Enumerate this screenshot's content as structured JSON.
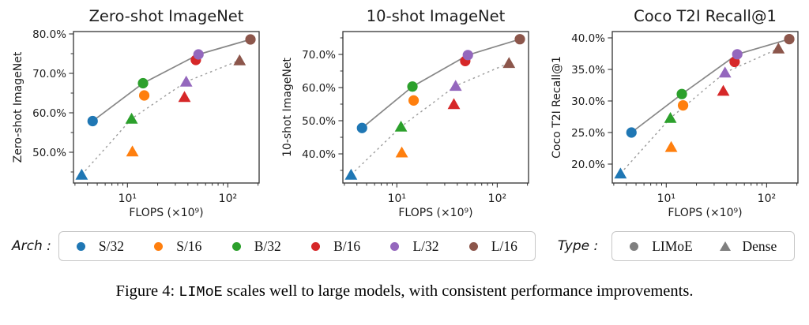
{
  "colors": {
    "type_marker": "#7f7f7f",
    "solid_line": "#878787",
    "dashed_line": "#9b9b9b",
    "axis": "#333333"
  },
  "archs": [
    {
      "label": "S/32",
      "color": "#1f77b4"
    },
    {
      "label": "S/16",
      "color": "#ff7f0e"
    },
    {
      "label": "B/32",
      "color": "#2ca02c"
    },
    {
      "label": "B/16",
      "color": "#d62728"
    },
    {
      "label": "L/32",
      "color": "#9467bd"
    },
    {
      "label": "L/16",
      "color": "#8c564b"
    }
  ],
  "types": [
    {
      "label": "LIMoE",
      "marker": "circle"
    },
    {
      "label": "Dense",
      "marker": "triangle"
    }
  ],
  "legend": {
    "arch_label": "Arch :",
    "type_label": "Type :"
  },
  "caption": {
    "prefix": "Figure 4: ",
    "code": "LIMoE",
    "suffix": " scales well to large models, with consistent performance improvements."
  },
  "chart_data": [
    {
      "type": "scatter",
      "title": "Zero-shot ImageNet",
      "xlabel": "FLOPS (×10⁹)",
      "ylabel": "Zero-shot ImageNet",
      "xscale": "log",
      "xlim": [
        2.9,
        205
      ],
      "ylim": [
        42.2,
        80.6
      ],
      "yticks": [
        50,
        60,
        70,
        80
      ],
      "ytick_labels": [
        "50.0%",
        "60.0%",
        "70.0%",
        "80.0%"
      ],
      "y_minor_step": 5,
      "xticks": [
        10,
        100
      ],
      "xtick_labels": [
        "10¹",
        "10²"
      ],
      "x_minor": [
        3,
        4,
        5,
        6,
        7,
        8,
        9,
        20,
        30,
        40,
        50,
        60,
        70,
        80,
        90,
        200
      ],
      "grid": false,
      "series": [
        {
          "name": "Dense",
          "marker": "triangle",
          "line": "dashed",
          "line_point_indices": [
            0,
            2,
            4,
            5
          ],
          "x": [
            3.5,
            11.2,
            11.0,
            37,
            38.5,
            131
          ],
          "y": [
            44.3,
            50.2,
            58.5,
            64.0,
            67.9,
            73.3
          ]
        },
        {
          "name": "LIMoE",
          "marker": "circle",
          "line": "solid",
          "line_point_indices": [
            0,
            2,
            4,
            5
          ],
          "x": [
            4.5,
            14.7,
            14.3,
            48,
            51,
            168
          ],
          "y": [
            57.9,
            64.4,
            67.5,
            73.4,
            74.8,
            78.6
          ]
        }
      ]
    },
    {
      "type": "scatter",
      "title": "10-shot ImageNet",
      "xlabel": "FLOPS (×10⁹)",
      "ylabel": "10-shot ImageNet",
      "xscale": "log",
      "xlim": [
        2.9,
        205
      ],
      "ylim": [
        31.2,
        76.9
      ],
      "yticks": [
        40,
        50,
        60,
        70
      ],
      "ytick_labels": [
        "40.0%",
        "50.0%",
        "60.0%",
        "70.0%"
      ],
      "y_minor_step": 5,
      "xticks": [
        10,
        100
      ],
      "xtick_labels": [
        "10¹",
        "10²"
      ],
      "x_minor": [
        3,
        4,
        5,
        6,
        7,
        8,
        9,
        20,
        30,
        40,
        50,
        60,
        70,
        80,
        90,
        200
      ],
      "grid": false,
      "series": [
        {
          "name": "Dense",
          "marker": "triangle",
          "line": "dashed",
          "line_point_indices": [
            0,
            2,
            4,
            5
          ],
          "x": [
            3.5,
            11.2,
            11.0,
            37,
            38.5,
            131
          ],
          "y": [
            33.7,
            40.4,
            48.2,
            55.0,
            60.5,
            67.4
          ]
        },
        {
          "name": "LIMoE",
          "marker": "circle",
          "line": "solid",
          "line_point_indices": [
            0,
            2,
            4,
            5
          ],
          "x": [
            4.5,
            14.7,
            14.3,
            48,
            51,
            168
          ],
          "y": [
            47.8,
            56.1,
            60.3,
            68.0,
            69.8,
            74.6
          ]
        }
      ]
    },
    {
      "type": "scatter",
      "title": "Coco T2I Recall@1",
      "xlabel": "FLOPS (×10⁹)",
      "ylabel": "Coco T2I Recall@1",
      "xscale": "log",
      "xlim": [
        2.9,
        205
      ],
      "ylim": [
        17.0,
        41.0
      ],
      "yticks": [
        20,
        25,
        30,
        35,
        40
      ],
      "ytick_labels": [
        "20.0%",
        "25.0%",
        "30.0%",
        "35.0%",
        "40.0%"
      ],
      "y_minor_step": 0,
      "xticks": [
        10,
        100
      ],
      "xtick_labels": [
        "10¹",
        "10²"
      ],
      "x_minor": [
        3,
        4,
        5,
        6,
        7,
        8,
        9,
        20,
        30,
        40,
        50,
        60,
        70,
        80,
        90,
        200
      ],
      "grid": false,
      "series": [
        {
          "name": "Dense",
          "marker": "triangle",
          "line": "dashed",
          "line_point_indices": [
            0,
            2,
            4,
            5
          ],
          "x": [
            3.5,
            11.2,
            11.0,
            37,
            38.5,
            131
          ],
          "y": [
            18.5,
            22.7,
            27.3,
            31.6,
            34.5,
            38.3
          ]
        },
        {
          "name": "LIMoE",
          "marker": "circle",
          "line": "solid",
          "line_point_indices": [
            0,
            2,
            4,
            5
          ],
          "x": [
            4.5,
            14.7,
            14.3,
            48,
            51,
            168
          ],
          "y": [
            25.0,
            29.3,
            31.1,
            36.2,
            37.4,
            39.8
          ]
        }
      ]
    }
  ]
}
